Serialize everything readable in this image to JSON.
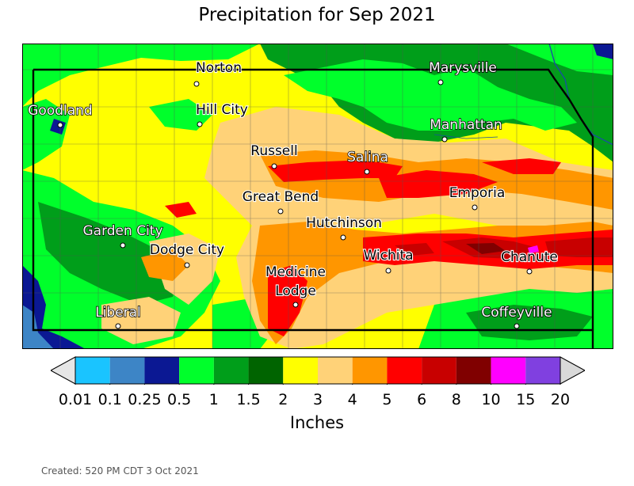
{
  "title": "Precipitation for Sep 2021",
  "created": "Created: 520 PM CDT 3 Oct 2021",
  "colorbar": {
    "units": "Inches",
    "labels": [
      "0.01",
      "0.1",
      "0.25",
      "0.5",
      "1",
      "1.5",
      "2",
      "3",
      "4",
      "5",
      "6",
      "8",
      "10",
      "15",
      "20"
    ],
    "colors": [
      "#1ac4ff",
      "#3d85c6",
      "#0b1893",
      "#00ff2b",
      "#009e1a",
      "#006400",
      "#ffff00",
      "#ffd278",
      "#ff9600",
      "#ff0000",
      "#c80000",
      "#800000",
      "#ff00ff",
      "#8040e0"
    ],
    "under_color": "#e6e6e6",
    "over_color": "#d9d9d9"
  },
  "cities": [
    {
      "name": "Norton"
    },
    {
      "name": "Marysville"
    },
    {
      "name": "Goodland"
    },
    {
      "name": "Hill City"
    },
    {
      "name": "Manhattan"
    },
    {
      "name": "Russell"
    },
    {
      "name": "Salina"
    },
    {
      "name": "Great Bend"
    },
    {
      "name": "Emporia"
    },
    {
      "name": "Hutchinson"
    },
    {
      "name": "Garden City"
    },
    {
      "name": "Dodge City"
    },
    {
      "name": "Wichita"
    },
    {
      "name": "Chanute"
    },
    {
      "name": "Medicine Lodge"
    },
    {
      "name": "Liberal"
    },
    {
      "name": "Coffeyville"
    }
  ]
}
